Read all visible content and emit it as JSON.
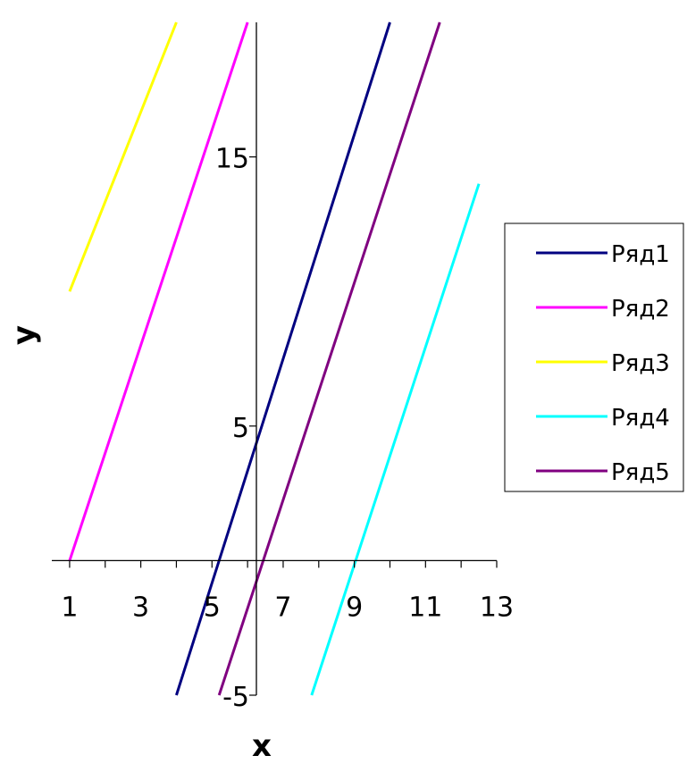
{
  "chart_data": {
    "type": "line",
    "xlabel": "x",
    "ylabel": "y",
    "xlim": [
      1,
      13
    ],
    "ylim": [
      -5,
      20
    ],
    "x_tick_labels": [
      {
        "value": 1,
        "label": "1"
      },
      {
        "value": 3,
        "label": "3"
      },
      {
        "value": 5,
        "label": "5"
      },
      {
        "value": 7,
        "label": "7"
      },
      {
        "value": 9,
        "label": "9"
      },
      {
        "value": 11,
        "label": "11"
      },
      {
        "value": 13,
        "label": "13"
      }
    ],
    "y_tick_labels": [
      {
        "value": -5,
        "label": "-5"
      },
      {
        "value": 5,
        "label": "5"
      },
      {
        "value": 15,
        "label": "15"
      }
    ],
    "x_minor_ticks": [
      1,
      2,
      3,
      4,
      5,
      6,
      7,
      8,
      9,
      10,
      11,
      12,
      13
    ],
    "grid": false,
    "legend_position": "right",
    "series": [
      {
        "name": "Ряд1",
        "color": "#000080",
        "points": [
          [
            4,
            -5
          ],
          [
            10,
            20
          ]
        ]
      },
      {
        "name": "Ряд2",
        "color": "#ff00ff",
        "points": [
          [
            1,
            0
          ],
          [
            6,
            20
          ]
        ]
      },
      {
        "name": "Ряд3",
        "color": "#ffff00",
        "points": [
          [
            1,
            10
          ],
          [
            4,
            20
          ]
        ]
      },
      {
        "name": "Ряд4",
        "color": "#00ffff",
        "points": [
          [
            7.8,
            -5
          ],
          [
            12.5,
            14
          ]
        ]
      },
      {
        "name": "Ряд5",
        "color": "#800080",
        "points": [
          [
            5.2,
            -5
          ],
          [
            11.4,
            20
          ]
        ]
      }
    ]
  }
}
